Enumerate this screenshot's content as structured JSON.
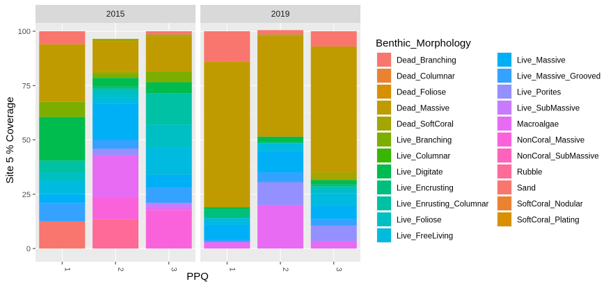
{
  "chart_data": {
    "type": "bar",
    "stacked": true,
    "facet_by": "Year",
    "xlabel": "PPQ",
    "ylabel": "Site 5 % Coverage",
    "ylim": [
      0,
      100
    ],
    "yticks": [
      0,
      25,
      50,
      75,
      100
    ],
    "grid": true,
    "legend_position": "right",
    "legend_title": "Benthic_Morphology",
    "categories": [
      {
        "name": "Dead_Branching",
        "color": "#F8766D"
      },
      {
        "name": "Dead_Columnar",
        "color": "#EA8331"
      },
      {
        "name": "Dead_Foliose",
        "color": "#D89000"
      },
      {
        "name": "Dead_Massive",
        "color": "#C09B00"
      },
      {
        "name": "Dead_SoftCoral",
        "color": "#A3A500"
      },
      {
        "name": "Live_Branching",
        "color": "#7CAE00"
      },
      {
        "name": "Live_Columnar",
        "color": "#39B600"
      },
      {
        "name": "Live_Digitate",
        "color": "#00BB4E"
      },
      {
        "name": "Live_Encrusting",
        "color": "#00BF7D"
      },
      {
        "name": "Live_Enrusting_Columnar",
        "color": "#00C1A3"
      },
      {
        "name": "Live_Foliose",
        "color": "#00BFC4"
      },
      {
        "name": "Live_FreeLiving",
        "color": "#00BAE0"
      },
      {
        "name": "Live_Massive",
        "color": "#00B0F6"
      },
      {
        "name": "Live_Massive_Grooved",
        "color": "#35A2FF"
      },
      {
        "name": "Live_Porites",
        "color": "#9590FF"
      },
      {
        "name": "Live_SubMassive",
        "color": "#C77CFF"
      },
      {
        "name": "Macroalgae",
        "color": "#E76BF3"
      },
      {
        "name": "NonCoral_Massive",
        "color": "#FA62DB"
      },
      {
        "name": "NonCoral_SubMassive",
        "color": "#FF62BC"
      },
      {
        "name": "Rubble",
        "color": "#FF6A98"
      },
      {
        "name": "Sand",
        "color": "#F8766D"
      },
      {
        "name": "SoftCoral_Nodular",
        "color": "#EA8331"
      },
      {
        "name": "SoftCoral_Plating",
        "color": "#D89000"
      }
    ],
    "legend_entries": [
      {
        "label": "Dead_Branching",
        "color": "#F8766D"
      },
      {
        "label": "Dead_Columnar",
        "color": "#EA8331"
      },
      {
        "label": "Dead_Foliose",
        "color": "#D89000"
      },
      {
        "label": "Dead_Massive",
        "color": "#C09B00"
      },
      {
        "label": "Dead_SoftCoral",
        "color": "#A3A500"
      },
      {
        "label": "Live_Branching",
        "color": "#7CAE00"
      },
      {
        "label": "Live_Columnar",
        "color": "#39B600"
      },
      {
        "label": "Live_Digitate",
        "color": "#00BB4E"
      },
      {
        "label": "Live_Encrusting",
        "color": "#00BF7D"
      },
      {
        "label": "Live_Enrusting_Columnar",
        "color": "#00C1A3"
      },
      {
        "label": "Live_Foliose",
        "color": "#00BFC4"
      },
      {
        "label": "Live_FreeLiving",
        "color": "#00BAE0"
      },
      {
        "label": "Live_Massive",
        "color": "#00B0F6"
      },
      {
        "label": "Live_Massive_Grooved",
        "color": "#35A2FF"
      },
      {
        "label": "Live_Porites",
        "color": "#9590FF"
      },
      {
        "label": "Live_SubMassive",
        "color": "#C77CFF"
      },
      {
        "label": "Macroalgae",
        "color": "#E76BF3"
      },
      {
        "label": "NonCoral_Massive",
        "color": "#FA62DB"
      },
      {
        "label": "NonCoral_SubMassive",
        "color": "#FF62BC"
      },
      {
        "label": "Rubble",
        "color": "#FF6A98"
      },
      {
        "label": "Sand",
        "color": "#F8766D"
      },
      {
        "label": "SoftCoral_Nodular",
        "color": "#EA8331"
      },
      {
        "label": "SoftCoral_Plating",
        "color": "#D89000"
      }
    ],
    "panels": [
      {
        "label": "2015",
        "bars": [
          {
            "x": "1",
            "segments": [
              {
                "cat": "Sand",
                "value": 12.5
              },
              {
                "cat": "Live_Massive_Grooved",
                "value": 8.5
              },
              {
                "cat": "Live_Massive",
                "value": 4.0
              },
              {
                "cat": "Live_FreeLiving",
                "value": 6.0
              },
              {
                "cat": "Live_Foliose",
                "value": 4.0
              },
              {
                "cat": "Live_Enrusting_Columnar",
                "value": 5.5
              },
              {
                "cat": "Live_Digitate",
                "value": 20.0
              },
              {
                "cat": "Live_Branching",
                "value": 7.0
              },
              {
                "cat": "Dead_Massive",
                "value": 26.5
              },
              {
                "cat": "Dead_Branching",
                "value": 6.0
              }
            ]
          },
          {
            "x": "2",
            "segments": [
              {
                "cat": "Rubble",
                "value": 13.5
              },
              {
                "cat": "NonCoral_Massive",
                "value": 10.0
              },
              {
                "cat": "Macroalgae",
                "value": 19.5
              },
              {
                "cat": "Live_Porites",
                "value": 3.0
              },
              {
                "cat": "Live_Massive_Grooved",
                "value": 4.0
              },
              {
                "cat": "Live_Massive",
                "value": 16.5
              },
              {
                "cat": "Live_FreeLiving",
                "value": 3.0
              },
              {
                "cat": "Live_Foliose",
                "value": 4.0
              },
              {
                "cat": "Live_Encrusting",
                "value": 1.0
              },
              {
                "cat": "Live_Digitate",
                "value": 4.0
              },
              {
                "cat": "Live_Branching",
                "value": 2.0
              },
              {
                "cat": "Dead_SoftCoral",
                "value": 1.0
              },
              {
                "cat": "Dead_Massive",
                "value": 14.0
              },
              {
                "cat": "Dead_SoftCoral",
                "value": 1.0
              }
            ]
          },
          {
            "x": "3",
            "segments": [
              {
                "cat": "NonCoral_Massive",
                "value": 17.5
              },
              {
                "cat": "Macroalgae",
                "value": 1.5
              },
              {
                "cat": "Live_SubMassive",
                "value": 2.0
              },
              {
                "cat": "Live_Massive_Grooved",
                "value": 7.0
              },
              {
                "cat": "Live_Massive",
                "value": 6.0
              },
              {
                "cat": "Live_FreeLiving",
                "value": 12.5
              },
              {
                "cat": "Live_Foliose",
                "value": 10.5
              },
              {
                "cat": "Live_Enrusting_Columnar",
                "value": 14.5
              },
              {
                "cat": "Live_Digitate",
                "value": 5.0
              },
              {
                "cat": "Live_Branching",
                "value": 5.0
              },
              {
                "cat": "Dead_Massive",
                "value": 16.0
              },
              {
                "cat": "Dead_SoftCoral",
                "value": 1.0
              },
              {
                "cat": "Dead_Branching",
                "value": 1.5
              }
            ]
          }
        ]
      },
      {
        "label": "2019",
        "bars": [
          {
            "x": "1",
            "segments": [
              {
                "cat": "Macroalgae",
                "value": 3.0
              },
              {
                "cat": "Live_Massive_Grooved",
                "value": 1.0
              },
              {
                "cat": "Live_Massive",
                "value": 7.0
              },
              {
                "cat": "Live_FreeLiving",
                "value": 3.0
              },
              {
                "cat": "Live_Encrusting",
                "value": 4.0
              },
              {
                "cat": "Live_Digitate",
                "value": 1.0
              },
              {
                "cat": "Dead_Massive",
                "value": 67.0
              },
              {
                "cat": "Dead_Branching",
                "value": 14.0
              }
            ]
          },
          {
            "x": "2",
            "segments": [
              {
                "cat": "Macroalgae",
                "value": 20.0
              },
              {
                "cat": "Live_Porites",
                "value": 10.5
              },
              {
                "cat": "Live_Massive_Grooved",
                "value": 4.5
              },
              {
                "cat": "Live_Massive",
                "value": 10.0
              },
              {
                "cat": "Live_FreeLiving",
                "value": 3.5
              },
              {
                "cat": "Live_Encrusting",
                "value": 0.5
              },
              {
                "cat": "Live_Digitate",
                "value": 2.5
              },
              {
                "cat": "Dead_Massive",
                "value": 46.5
              },
              {
                "cat": "Dead_SoftCoral",
                "value": 0.5
              },
              {
                "cat": "Dead_Branching",
                "value": 2.0
              }
            ]
          },
          {
            "x": "3",
            "segments": [
              {
                "cat": "Macroalgae",
                "value": 3.5
              },
              {
                "cat": "Live_Porites",
                "value": 7.0
              },
              {
                "cat": "Live_Massive_Grooved",
                "value": 3.0
              },
              {
                "cat": "Live_Massive",
                "value": 6.0
              },
              {
                "cat": "Live_FreeLiving",
                "value": 6.0
              },
              {
                "cat": "Live_Foliose",
                "value": 3.0
              },
              {
                "cat": "Live_Encrusting",
                "value": 1.0
              },
              {
                "cat": "Live_Digitate",
                "value": 2.0
              },
              {
                "cat": "Dead_SoftCoral",
                "value": 3.5
              },
              {
                "cat": "Dead_Massive",
                "value": 58.0
              },
              {
                "cat": "Dead_Branching",
                "value": 7.0
              }
            ]
          }
        ]
      }
    ]
  }
}
